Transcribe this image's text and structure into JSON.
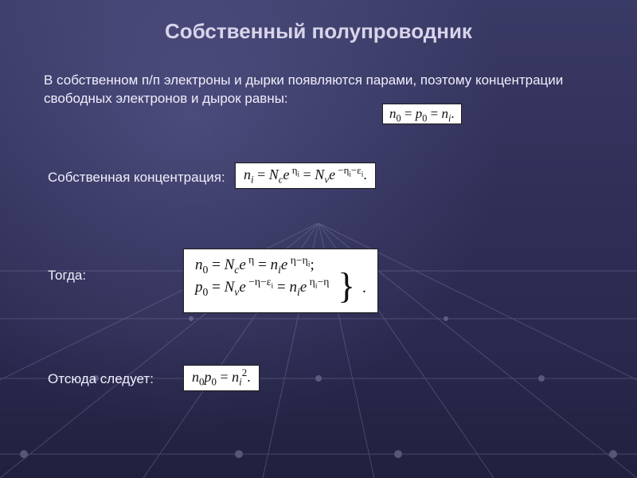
{
  "title": "Собственный полупроводник",
  "paragraph": "В собственном п/п электроны и дырки появляются парами, поэтому концентрации свободных электронов и дырок равны:",
  "labels": {
    "intrinsic": "Собственная концентрация:",
    "then": "Тогда:",
    "hence": "Отсюда следует:"
  },
  "formulas": {
    "eq1": "n₀ = p₀ = nᵢ.",
    "eq2_html": "<i>n<sub>i</sub></i> = <i>N<sub>c</sub></i><i>e</i><sup>&nbsp;η<sub>i</sub></sup> = <i>N<sub>v</sub></i><i>e</i><sup>&nbsp;−η<sub>i</sub>−ε<sub>i</sub></sup>.",
    "eq3_line1_html": "<i>n</i><sub>0</sub> = <i>N<sub>c</sub></i><i>e</i><sup>&nbsp;η</sup> = <i>n<sub>i</sub></i><i>e</i><sup>&nbsp;η−η<sub>i</sub></sup>;",
    "eq3_line2_html": "<i>p</i><sub>0</sub> = <i>N<sub>v</sub></i><i>e</i><sup>&nbsp;−η−ε<sub>i</sub></sup> = <i>n<sub>i</sub></i><i>e</i><sup>&nbsp;η<sub>i</sub>−η</sup>",
    "eq4_html": "<i>n</i><sub>0</sub><i>p</i><sub>0</sub> = <i>n<sub>i</sub></i><sup>2</sup>."
  },
  "style": {
    "slide_width": 800,
    "slide_height": 600,
    "title_color": "#d8d4ea",
    "text_color": "#f0eefb",
    "formula_bg": "#ffffff",
    "formula_fg": "#111111",
    "title_fontsize": 26,
    "body_fontsize": 17,
    "formula_fontsize": 18,
    "grid_line_color": "#8d8db6",
    "grid_node_color": "#b8b8dd",
    "bg_gradient_top": "#3a3a66",
    "bg_gradient_bottom": "#20203e"
  }
}
